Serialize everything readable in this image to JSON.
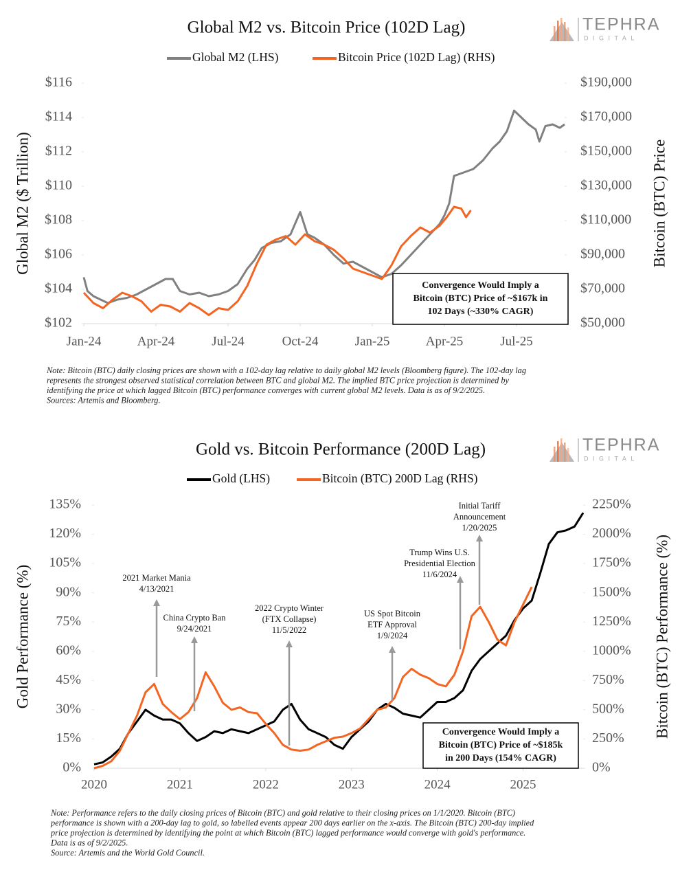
{
  "chart_data": [
    {
      "type": "line",
      "title": "Global M2 vs. Bitcoin Price (102D Lag)",
      "logo": {
        "name": "TEPHRA",
        "sub": "DIGITAL"
      },
      "ylabel": "Global M2 ($ Trillion)",
      "y2label": "Bitcoin (BTC) Price",
      "xlim": [
        0,
        20
      ],
      "xticks": [
        {
          "value": 0,
          "label": "Jan-24"
        },
        {
          "value": 3,
          "label": "Apr-24"
        },
        {
          "value": 6,
          "label": "Jul-24"
        },
        {
          "value": 9,
          "label": "Oct-24"
        },
        {
          "value": 12,
          "label": "Jan-25"
        },
        {
          "value": 15,
          "label": "Apr-25"
        },
        {
          "value": 18,
          "label": "Jul-25"
        }
      ],
      "ylim": [
        102,
        116
      ],
      "yticks": [
        {
          "value": 102,
          "label": "$102"
        },
        {
          "value": 104,
          "label": "$104"
        },
        {
          "value": 106,
          "label": "$106"
        },
        {
          "value": 108,
          "label": "$108"
        },
        {
          "value": 110,
          "label": "$110"
        },
        {
          "value": 112,
          "label": "$112"
        },
        {
          "value": 114,
          "label": "$114"
        },
        {
          "value": 116,
          "label": "$116"
        }
      ],
      "y2lim": [
        50000,
        190000
      ],
      "y2ticks": [
        {
          "value": 50000,
          "label": "$50,000"
        },
        {
          "value": 70000,
          "label": "$70,000"
        },
        {
          "value": 90000,
          "label": "$90,000"
        },
        {
          "value": 110000,
          "label": "$110,000"
        },
        {
          "value": 130000,
          "label": "$130,000"
        },
        {
          "value": 150000,
          "label": "$150,000"
        },
        {
          "value": 170000,
          "label": "$170,000"
        },
        {
          "value": 190000,
          "label": "$190,000"
        }
      ],
      "grid": false,
      "series": [
        {
          "name": "Global M2 (LHS)",
          "color": "#808080",
          "x": [
            0,
            0.15,
            0.4,
            0.7,
            1,
            1.4,
            1.8,
            2.2,
            2.6,
            3,
            3.4,
            3.7,
            4,
            4.4,
            4.8,
            5.2,
            5.6,
            6,
            6.4,
            6.8,
            7.1,
            7.4,
            7.8,
            8.2,
            8.6,
            9,
            9.3,
            9.6,
            10,
            10.4,
            10.8,
            11.2,
            11.6,
            12,
            12.4,
            12.8,
            13.2,
            13.6,
            14,
            14.4,
            14.8,
            15,
            15.2,
            15.4,
            15.8,
            16.2,
            16.6,
            17,
            17.3,
            17.6,
            17.9,
            18.2,
            18.5,
            18.8,
            18.95,
            19.2,
            19.5,
            19.8,
            20
          ],
          "values": [
            104.7,
            103.9,
            103.6,
            103.4,
            103.2,
            103.4,
            103.5,
            103.7,
            104.0,
            104.3,
            104.6,
            104.6,
            103.9,
            103.7,
            103.8,
            103.6,
            103.7,
            103.9,
            104.3,
            105.2,
            105.7,
            106.4,
            106.7,
            106.8,
            107.2,
            108.5,
            107.2,
            107.0,
            106.6,
            106.0,
            105.5,
            105.6,
            105.3,
            105.0,
            104.7,
            104.9,
            105.4,
            106.0,
            106.6,
            107.2,
            107.8,
            108.3,
            109.0,
            110.6,
            110.8,
            111.0,
            111.5,
            112.2,
            112.6,
            113.2,
            114.4,
            114.0,
            113.6,
            113.3,
            112.6,
            113.5,
            113.6,
            113.4,
            113.6
          ]
        },
        {
          "name": "Bitcoin Price (102D Lag) (RHS)",
          "color": "#f26522",
          "axis": "y2",
          "x": [
            0,
            0.4,
            0.8,
            1.2,
            1.6,
            2,
            2.4,
            2.8,
            3.2,
            3.6,
            4,
            4.4,
            4.8,
            5.2,
            5.6,
            6,
            6.4,
            6.8,
            7.2,
            7.6,
            8,
            8.4,
            8.8,
            9.2,
            9.6,
            10,
            10.4,
            10.8,
            11.2,
            11.6,
            12,
            12.4,
            12.8,
            13.2,
            13.6,
            14,
            14.4,
            14.8,
            15.1,
            15.4,
            15.7,
            15.9,
            16.1
          ],
          "values": [
            68000,
            62000,
            59000,
            64000,
            68000,
            66000,
            63000,
            57000,
            61000,
            60000,
            57000,
            62000,
            59000,
            55000,
            59000,
            58000,
            63000,
            72000,
            85000,
            96000,
            99000,
            101000,
            96000,
            102000,
            98000,
            96000,
            93000,
            88000,
            82000,
            80000,
            78000,
            76000,
            84000,
            95000,
            101000,
            106000,
            103000,
            107000,
            112000,
            118000,
            117000,
            112000,
            116000
          ]
        }
      ],
      "annotation_box": [
        "Convergence Would Imply a",
        "Bitcoin (BTC) Price of ~$167k in",
        "102 Days (~330% CAGR)"
      ],
      "notes": [
        "Note: Bitcoin (BTC) daily closing prices are shown with a 102-day lag relative to daily global M2 levels (Bloomberg figure). The 102-day lag",
        "represents the strongest observed statistical correlation between BTC and global M2. The implied BTC price projection is determined by",
        "identifying the price at which lagged Bitcoin (BTC) performance converges with current global M2 levels. Data is as of 9/2/2025.",
        "Sources: Artemis and Bloomberg."
      ]
    },
    {
      "type": "line",
      "title": "Gold vs. Bitcoin Performance (200D Lag)",
      "logo": {
        "name": "TEPHRA",
        "sub": "DIGITAL"
      },
      "ylabel": "Gold Performance (%)",
      "y2label": "Bitcoin (BTC) Performance (%)",
      "xlim": [
        2020,
        2025.7
      ],
      "xticks": [
        2020,
        2021,
        2022,
        2023,
        2024,
        2025
      ],
      "ylim": [
        0,
        135
      ],
      "yticks": [
        {
          "value": 0,
          "label": "0%"
        },
        {
          "value": 15,
          "label": "15%"
        },
        {
          "value": 30,
          "label": "30%"
        },
        {
          "value": 45,
          "label": "45%"
        },
        {
          "value": 60,
          "label": "60%"
        },
        {
          "value": 75,
          "label": "75%"
        },
        {
          "value": 90,
          "label": "90%"
        },
        {
          "value": 105,
          "label": "105%"
        },
        {
          "value": 120,
          "label": "120%"
        },
        {
          "value": 135,
          "label": "135%"
        }
      ],
      "y2lim": [
        0,
        2250
      ],
      "y2ticks": [
        {
          "value": 0,
          "label": "0%"
        },
        {
          "value": 250,
          "label": "250%"
        },
        {
          "value": 500,
          "label": "500%"
        },
        {
          "value": 750,
          "label": "750%"
        },
        {
          "value": 1000,
          "label": "1000%"
        },
        {
          "value": 1250,
          "label": "1250%"
        },
        {
          "value": 1500,
          "label": "1500%"
        },
        {
          "value": 1750,
          "label": "1750%"
        },
        {
          "value": 2000,
          "label": "2000%"
        },
        {
          "value": 2250,
          "label": "2250%"
        }
      ],
      "grid": false,
      "series": [
        {
          "name": "Gold (LHS)",
          "color": "#000000",
          "x": [
            2020,
            2020.1,
            2020.2,
            2020.3,
            2020.4,
            2020.5,
            2020.6,
            2020.7,
            2020.8,
            2020.9,
            2021,
            2021.1,
            2021.2,
            2021.3,
            2021.4,
            2021.5,
            2021.6,
            2021.7,
            2021.8,
            2021.9,
            2022,
            2022.1,
            2022.2,
            2022.3,
            2022.4,
            2022.5,
            2022.6,
            2022.7,
            2022.8,
            2022.9,
            2023,
            2023.1,
            2023.2,
            2023.3,
            2023.4,
            2023.5,
            2023.6,
            2023.7,
            2023.8,
            2023.9,
            2024,
            2024.1,
            2024.2,
            2024.3,
            2024.4,
            2024.5,
            2024.6,
            2024.7,
            2024.8,
            2024.9,
            2025,
            2025.1,
            2025.2,
            2025.3,
            2025.4,
            2025.5,
            2025.6,
            2025.7
          ],
          "values": [
            2,
            3,
            6,
            10,
            18,
            24,
            30,
            27,
            25,
            25,
            23,
            18,
            14,
            16,
            19,
            18,
            20,
            19,
            18,
            20,
            22,
            24,
            30,
            33,
            25,
            20,
            18,
            16,
            12,
            10,
            16,
            20,
            24,
            30,
            33,
            31,
            28,
            27,
            26,
            30,
            34,
            34,
            36,
            40,
            50,
            56,
            60,
            64,
            68,
            76,
            82,
            86,
            100,
            115,
            121,
            122,
            124,
            131
          ]
        },
        {
          "name": "Bitcoin (BTC) 200D Lag (RHS)",
          "color": "#f26522",
          "axis": "y2",
          "x": [
            2020,
            2020.1,
            2020.2,
            2020.3,
            2020.4,
            2020.5,
            2020.6,
            2020.7,
            2020.8,
            2020.9,
            2021,
            2021.1,
            2021.2,
            2021.3,
            2021.4,
            2021.5,
            2021.6,
            2021.7,
            2021.8,
            2021.9,
            2022,
            2022.1,
            2022.2,
            2022.3,
            2022.4,
            2022.5,
            2022.6,
            2022.7,
            2022.8,
            2022.9,
            2023,
            2023.1,
            2023.2,
            2023.3,
            2023.4,
            2023.5,
            2023.6,
            2023.7,
            2023.8,
            2023.9,
            2024,
            2024.1,
            2024.2,
            2024.3,
            2024.4,
            2024.5,
            2024.6,
            2024.7,
            2024.8,
            2024.9,
            2025,
            2025.1
          ],
          "values": [
            0,
            20,
            60,
            150,
            300,
            450,
            650,
            720,
            550,
            480,
            420,
            480,
            600,
            820,
            700,
            560,
            500,
            520,
            480,
            470,
            380,
            300,
            200,
            160,
            150,
            160,
            200,
            230,
            260,
            270,
            300,
            340,
            420,
            500,
            520,
            600,
            780,
            850,
            800,
            770,
            720,
            700,
            800,
            1000,
            1300,
            1380,
            1250,
            1100,
            1050,
            1250,
            1400,
            1550
          ]
        }
      ],
      "annotations": [
        {
          "lines": [
            "2021 Market Mania",
            "4/13/2021"
          ]
        },
        {
          "lines": [
            "China Crypto Ban",
            "9/24/2021"
          ]
        },
        {
          "lines": [
            "2022 Crypto Winter",
            "(FTX Collapse)",
            "11/5/2022"
          ]
        },
        {
          "lines": [
            "US Spot Bitcoin",
            "ETF Approval",
            "1/9/2024"
          ]
        },
        {
          "lines": [
            "Trump Wins U.S.",
            "Presidential Election",
            "11/6/2024"
          ]
        },
        {
          "lines": [
            "Initial Tariff",
            "Announcement",
            "1/20/2025"
          ]
        }
      ],
      "annotation_box": [
        "Convergence Would Imply a",
        "Bitcoin (BTC) Price of ~$185k",
        "in 200 Days (154% CAGR)"
      ],
      "notes": [
        "Note: Performance refers to the daily closing prices of Bitcoin (BTC) and gold relative to their closing prices on 1/1/2020. Bitcoin (BTC)",
        "performance is shown with a 200-day lag to gold, so labelled events appear 200 days earlier on the x-axis. The Bitcoin (BTC) 200-day implied",
        "price projection is determined by identifying the point at which Bitcoin (BTC) lagged performance would converge with gold's performance.",
        "Data is as of 9/2/2025.",
        "Source: Artemis and the World Gold Council."
      ]
    }
  ]
}
